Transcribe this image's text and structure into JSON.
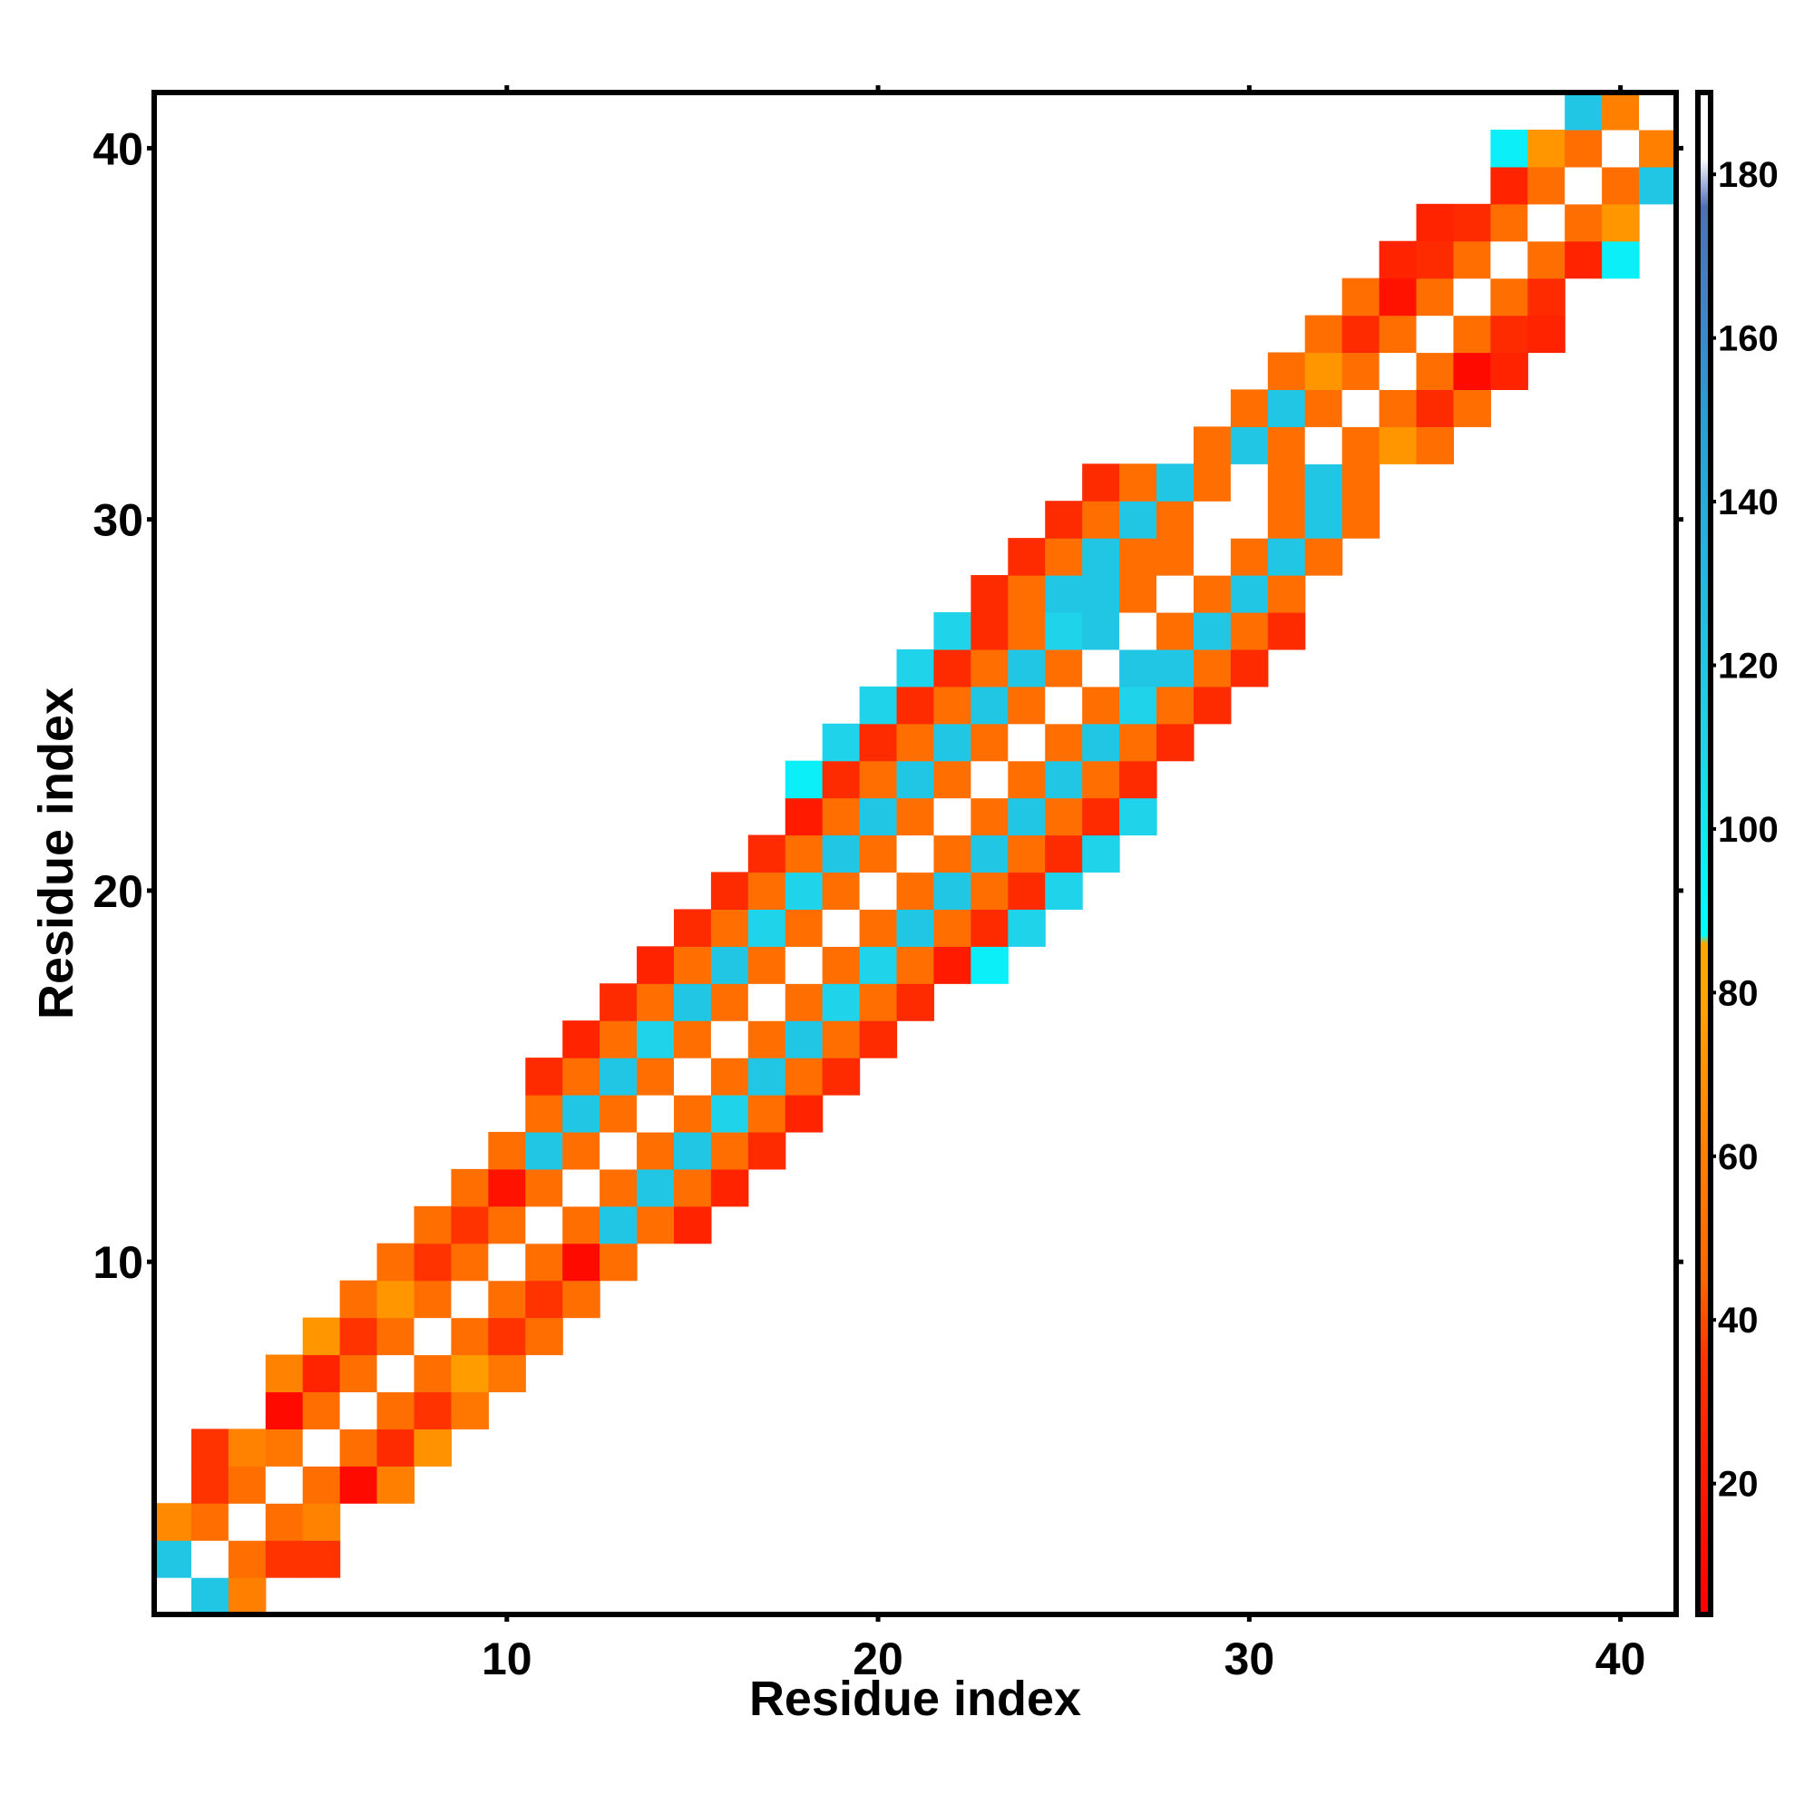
{
  "chart_data": {
    "type": "heatmap",
    "title": "",
    "xlabel": "Residue index",
    "ylabel": "Residue index",
    "xlim": [
      0.5,
      41.5
    ],
    "ylim": [
      0.5,
      41.5
    ],
    "xticks": [
      10,
      20,
      30,
      40
    ],
    "yticks": [
      10,
      20,
      30,
      40
    ],
    "colorbar": {
      "ticks": [
        20,
        40,
        60,
        80,
        100,
        120,
        140,
        160,
        180
      ],
      "range": [
        4,
        190
      ],
      "stops": [
        {
          "v": 4,
          "color": "#ff0000"
        },
        {
          "v": 35,
          "color": "#ff3300"
        },
        {
          "v": 45,
          "color": "#ff6600"
        },
        {
          "v": 60,
          "color": "#ff7f00"
        },
        {
          "v": 80,
          "color": "#ffa500"
        },
        {
          "v": 86,
          "color": "#ffa500"
        },
        {
          "v": 87,
          "color": "#00ffff"
        },
        {
          "v": 110,
          "color": "#1fd3ea"
        },
        {
          "v": 150,
          "color": "#2a9ed6"
        },
        {
          "v": 176,
          "color": "#4f6eb8"
        },
        {
          "v": 182,
          "color": "#ffffff"
        },
        {
          "v": 190,
          "color": "#ffffff"
        }
      ]
    },
    "cells": [
      [
        1,
        1,
        190
      ],
      [
        2,
        1,
        120
      ],
      [
        3,
        1,
        60
      ],
      [
        1,
        2,
        120
      ],
      [
        2,
        2,
        190
      ],
      [
        3,
        2,
        50
      ],
      [
        4,
        2,
        35
      ],
      [
        5,
        2,
        35
      ],
      [
        1,
        3,
        65
      ],
      [
        2,
        3,
        50
      ],
      [
        3,
        3,
        190
      ],
      [
        4,
        3,
        50
      ],
      [
        5,
        3,
        62
      ],
      [
        2,
        4,
        35
      ],
      [
        3,
        4,
        50
      ],
      [
        4,
        4,
        190
      ],
      [
        5,
        4,
        50
      ],
      [
        6,
        4,
        10
      ],
      [
        7,
        4,
        60
      ],
      [
        2,
        5,
        35
      ],
      [
        3,
        5,
        62
      ],
      [
        4,
        5,
        55
      ],
      [
        5,
        5,
        190
      ],
      [
        6,
        5,
        50
      ],
      [
        7,
        5,
        30
      ],
      [
        8,
        5,
        70
      ],
      [
        4,
        6,
        10
      ],
      [
        5,
        6,
        50
      ],
      [
        6,
        6,
        190
      ],
      [
        7,
        6,
        50
      ],
      [
        8,
        6,
        35
      ],
      [
        9,
        6,
        55
      ],
      [
        4,
        7,
        62
      ],
      [
        5,
        7,
        25
      ],
      [
        6,
        7,
        50
      ],
      [
        7,
        7,
        190
      ],
      [
        8,
        7,
        50
      ],
      [
        9,
        7,
        75
      ],
      [
        10,
        7,
        55
      ],
      [
        5,
        8,
        72
      ],
      [
        6,
        8,
        35
      ],
      [
        7,
        8,
        50
      ],
      [
        8,
        8,
        190
      ],
      [
        9,
        8,
        50
      ],
      [
        10,
        8,
        35
      ],
      [
        11,
        8,
        50
      ],
      [
        6,
        9,
        50
      ],
      [
        7,
        9,
        72
      ],
      [
        8,
        9,
        50
      ],
      [
        9,
        9,
        190
      ],
      [
        10,
        9,
        50
      ],
      [
        11,
        9,
        35
      ],
      [
        12,
        9,
        50
      ],
      [
        7,
        10,
        50
      ],
      [
        8,
        10,
        35
      ],
      [
        9,
        10,
        50
      ],
      [
        10,
        10,
        190
      ],
      [
        11,
        10,
        50
      ],
      [
        12,
        10,
        10
      ],
      [
        13,
        10,
        50
      ],
      [
        8,
        11,
        50
      ],
      [
        9,
        11,
        35
      ],
      [
        10,
        11,
        50
      ],
      [
        11,
        11,
        190
      ],
      [
        12,
        11,
        50
      ],
      [
        13,
        11,
        120
      ],
      [
        14,
        11,
        50
      ],
      [
        15,
        11,
        25
      ],
      [
        9,
        12,
        50
      ],
      [
        10,
        12,
        15
      ],
      [
        11,
        12,
        50
      ],
      [
        12,
        12,
        190
      ],
      [
        13,
        12,
        50
      ],
      [
        14,
        12,
        120
      ],
      [
        15,
        12,
        50
      ],
      [
        16,
        12,
        25
      ],
      [
        10,
        13,
        50
      ],
      [
        11,
        13,
        120
      ],
      [
        12,
        13,
        50
      ],
      [
        13,
        13,
        190
      ],
      [
        14,
        13,
        50
      ],
      [
        15,
        13,
        120
      ],
      [
        16,
        13,
        50
      ],
      [
        17,
        13,
        30
      ],
      [
        11,
        14,
        50
      ],
      [
        12,
        14,
        120
      ],
      [
        13,
        14,
        50
      ],
      [
        14,
        14,
        190
      ],
      [
        15,
        14,
        50
      ],
      [
        16,
        14,
        110
      ],
      [
        17,
        14,
        50
      ],
      [
        18,
        14,
        25
      ],
      [
        11,
        15,
        30
      ],
      [
        12,
        15,
        50
      ],
      [
        13,
        15,
        120
      ],
      [
        14,
        15,
        50
      ],
      [
        15,
        15,
        190
      ],
      [
        16,
        15,
        50
      ],
      [
        17,
        15,
        120
      ],
      [
        18,
        15,
        50
      ],
      [
        19,
        15,
        30
      ],
      [
        12,
        16,
        25
      ],
      [
        13,
        16,
        50
      ],
      [
        14,
        16,
        110
      ],
      [
        15,
        16,
        50
      ],
      [
        16,
        16,
        190
      ],
      [
        17,
        16,
        50
      ],
      [
        18,
        16,
        120
      ],
      [
        19,
        16,
        50
      ],
      [
        20,
        16,
        30
      ],
      [
        13,
        17,
        30
      ],
      [
        14,
        17,
        50
      ],
      [
        15,
        17,
        120
      ],
      [
        16,
        17,
        50
      ],
      [
        17,
        17,
        190
      ],
      [
        18,
        17,
        50
      ],
      [
        19,
        17,
        110
      ],
      [
        20,
        17,
        50
      ],
      [
        21,
        17,
        30
      ],
      [
        14,
        18,
        25
      ],
      [
        15,
        18,
        50
      ],
      [
        16,
        18,
        120
      ],
      [
        17,
        18,
        50
      ],
      [
        18,
        18,
        190
      ],
      [
        19,
        18,
        50
      ],
      [
        20,
        18,
        110
      ],
      [
        21,
        18,
        50
      ],
      [
        22,
        18,
        20
      ],
      [
        23,
        18,
        95
      ],
      [
        15,
        19,
        30
      ],
      [
        16,
        19,
        50
      ],
      [
        17,
        19,
        110
      ],
      [
        18,
        19,
        50
      ],
      [
        19,
        19,
        190
      ],
      [
        20,
        19,
        50
      ],
      [
        21,
        19,
        120
      ],
      [
        22,
        19,
        50
      ],
      [
        23,
        19,
        30
      ],
      [
        24,
        19,
        110
      ],
      [
        16,
        20,
        30
      ],
      [
        17,
        20,
        50
      ],
      [
        18,
        20,
        110
      ],
      [
        19,
        20,
        50
      ],
      [
        20,
        20,
        190
      ],
      [
        21,
        20,
        50
      ],
      [
        22,
        20,
        120
      ],
      [
        23,
        20,
        50
      ],
      [
        24,
        20,
        30
      ],
      [
        25,
        20,
        110
      ],
      [
        17,
        21,
        30
      ],
      [
        18,
        21,
        50
      ],
      [
        19,
        21,
        120
      ],
      [
        20,
        21,
        50
      ],
      [
        21,
        21,
        190
      ],
      [
        22,
        21,
        50
      ],
      [
        23,
        21,
        120
      ],
      [
        24,
        21,
        50
      ],
      [
        25,
        21,
        30
      ],
      [
        26,
        21,
        110
      ],
      [
        18,
        22,
        20
      ],
      [
        19,
        22,
        50
      ],
      [
        20,
        22,
        120
      ],
      [
        21,
        22,
        50
      ],
      [
        22,
        22,
        190
      ],
      [
        23,
        22,
        50
      ],
      [
        24,
        22,
        120
      ],
      [
        25,
        22,
        50
      ],
      [
        26,
        22,
        30
      ],
      [
        27,
        22,
        110
      ],
      [
        18,
        23,
        95
      ],
      [
        19,
        23,
        30
      ],
      [
        20,
        23,
        50
      ],
      [
        21,
        23,
        120
      ],
      [
        22,
        23,
        50
      ],
      [
        23,
        23,
        190
      ],
      [
        24,
        23,
        50
      ],
      [
        25,
        23,
        120
      ],
      [
        26,
        23,
        50
      ],
      [
        27,
        23,
        30
      ],
      [
        19,
        24,
        110
      ],
      [
        20,
        24,
        30
      ],
      [
        21,
        24,
        50
      ],
      [
        22,
        24,
        120
      ],
      [
        23,
        24,
        50
      ],
      [
        24,
        24,
        190
      ],
      [
        25,
        24,
        50
      ],
      [
        26,
        24,
        120
      ],
      [
        27,
        24,
        50
      ],
      [
        28,
        24,
        30
      ],
      [
        20,
        25,
        110
      ],
      [
        21,
        25,
        30
      ],
      [
        22,
        25,
        50
      ],
      [
        23,
        25,
        120
      ],
      [
        24,
        25,
        50
      ],
      [
        25,
        25,
        190
      ],
      [
        26,
        25,
        50
      ],
      [
        27,
        25,
        110
      ],
      [
        28,
        25,
        50
      ],
      [
        29,
        25,
        30
      ],
      [
        21,
        26,
        110
      ],
      [
        22,
        26,
        30
      ],
      [
        23,
        26,
        50
      ],
      [
        24,
        26,
        120
      ],
      [
        25,
        26,
        50
      ],
      [
        26,
        26,
        190
      ],
      [
        27,
        26,
        120
      ],
      [
        28,
        26,
        120
      ],
      [
        29,
        26,
        50
      ],
      [
        30,
        26,
        30
      ],
      [
        22,
        27,
        110
      ],
      [
        23,
        27,
        30
      ],
      [
        24,
        27,
        50
      ],
      [
        25,
        27,
        110
      ],
      [
        26,
        27,
        120
      ],
      [
        27,
        27,
        190
      ],
      [
        28,
        27,
        50
      ],
      [
        29,
        27,
        120
      ],
      [
        30,
        27,
        50
      ],
      [
        31,
        27,
        30
      ],
      [
        23,
        28,
        30
      ],
      [
        24,
        28,
        50
      ],
      [
        25,
        28,
        120
      ],
      [
        26,
        28,
        120
      ],
      [
        27,
        28,
        50
      ],
      [
        28,
        28,
        190
      ],
      [
        29,
        28,
        50
      ],
      [
        30,
        28,
        120
      ],
      [
        31,
        28,
        50
      ],
      [
        24,
        29,
        30
      ],
      [
        25,
        29,
        50
      ],
      [
        26,
        29,
        120
      ],
      [
        27,
        29,
        50
      ],
      [
        28,
        29,
        50
      ],
      [
        29,
        29,
        190
      ],
      [
        30,
        29,
        50
      ],
      [
        31,
        29,
        120
      ],
      [
        32,
        29,
        50
      ],
      [
        25,
        30,
        30
      ],
      [
        26,
        30,
        50
      ],
      [
        27,
        30,
        120
      ],
      [
        28,
        30,
        50
      ],
      [
        29,
        30,
        190
      ],
      [
        30,
        30,
        190
      ],
      [
        31,
        30,
        50
      ],
      [
        32,
        30,
        120
      ],
      [
        33,
        30,
        50
      ],
      [
        26,
        31,
        30
      ],
      [
        27,
        31,
        50
      ],
      [
        28,
        31,
        120
      ],
      [
        29,
        31,
        50
      ],
      [
        30,
        31,
        190
      ],
      [
        31,
        31,
        50
      ],
      [
        32,
        31,
        120
      ],
      [
        33,
        31,
        50
      ],
      [
        29,
        32,
        50
      ],
      [
        30,
        32,
        120
      ],
      [
        31,
        32,
        50
      ],
      [
        32,
        32,
        190
      ],
      [
        33,
        32,
        50
      ],
      [
        34,
        32,
        72
      ],
      [
        35,
        32,
        50
      ],
      [
        30,
        33,
        50
      ],
      [
        31,
        33,
        120
      ],
      [
        32,
        33,
        50
      ],
      [
        33,
        33,
        190
      ],
      [
        34,
        33,
        50
      ],
      [
        35,
        33,
        30
      ],
      [
        36,
        33,
        50
      ],
      [
        31,
        34,
        50
      ],
      [
        32,
        34,
        72
      ],
      [
        33,
        34,
        50
      ],
      [
        34,
        34,
        190
      ],
      [
        35,
        34,
        50
      ],
      [
        36,
        34,
        10
      ],
      [
        37,
        34,
        25
      ],
      [
        32,
        35,
        50
      ],
      [
        33,
        35,
        30
      ],
      [
        34,
        35,
        50
      ],
      [
        35,
        35,
        190
      ],
      [
        36,
        35,
        50
      ],
      [
        37,
        35,
        30
      ],
      [
        38,
        35,
        25
      ],
      [
        33,
        36,
        50
      ],
      [
        34,
        36,
        15
      ],
      [
        35,
        36,
        50
      ],
      [
        36,
        36,
        190
      ],
      [
        37,
        36,
        50
      ],
      [
        38,
        36,
        30
      ],
      [
        34,
        37,
        25
      ],
      [
        35,
        37,
        30
      ],
      [
        36,
        37,
        50
      ],
      [
        37,
        37,
        190
      ],
      [
        38,
        37,
        50
      ],
      [
        39,
        37,
        25
      ],
      [
        40,
        37,
        95
      ],
      [
        35,
        38,
        25
      ],
      [
        36,
        38,
        30
      ],
      [
        37,
        38,
        50
      ],
      [
        38,
        38,
        190
      ],
      [
        39,
        38,
        50
      ],
      [
        40,
        38,
        72
      ],
      [
        37,
        39,
        25
      ],
      [
        38,
        39,
        50
      ],
      [
        39,
        39,
        190
      ],
      [
        40,
        39,
        50
      ],
      [
        41,
        39,
        120
      ],
      [
        37,
        40,
        95
      ],
      [
        38,
        40,
        72
      ],
      [
        39,
        40,
        50
      ],
      [
        40,
        40,
        190
      ],
      [
        41,
        40,
        60
      ],
      [
        39,
        41,
        120
      ],
      [
        40,
        41,
        60
      ],
      [
        41,
        41,
        190
      ]
    ]
  }
}
